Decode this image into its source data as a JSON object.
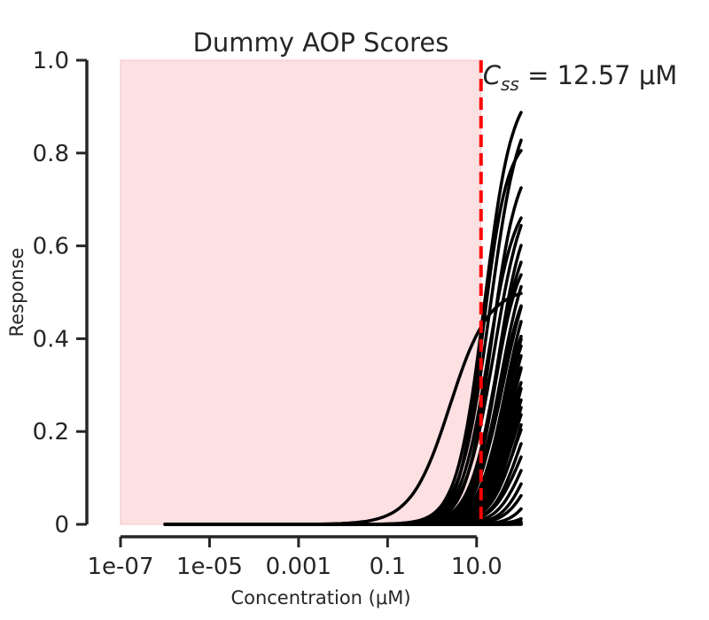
{
  "chart_data": {
    "type": "line",
    "title": "Dummy AOP Scores",
    "xlabel": "Concentration (μM)",
    "ylabel": "Response",
    "x_scale": "log",
    "xlim": [
      1e-07,
      100
    ],
    "ylim": [
      0,
      1
    ],
    "x_ticks": [
      1e-07,
      1e-05,
      0.001,
      0.1,
      10
    ],
    "x_tick_labels": [
      "1e-07",
      "1e-05",
      "0.001",
      "0.1",
      "10.0"
    ],
    "y_ticks": [
      0,
      0.2,
      0.4,
      0.6,
      0.8,
      1.0
    ],
    "y_tick_labels": [
      "0",
      "0.2",
      "0.4",
      "0.6",
      "0.8",
      "1.0"
    ],
    "grid": false,
    "shaded_region": {
      "x_from": 1e-07,
      "x_to": 12.57,
      "color": "#fde0e2"
    },
    "reference_line": {
      "x": 12.57,
      "color": "#ff0000",
      "style": "dashed"
    },
    "annotation": {
      "lhs": "C",
      "subscript": "ss",
      "rhs": " =  12.57 μM"
    },
    "curve_color": "#000000",
    "curve_x_range": [
      1e-06,
      100
    ],
    "series": [
      {
        "ec50": 2.5,
        "hill": 1.0,
        "top": 0.51
      },
      {
        "ec50": 15,
        "hill": 1.4,
        "top": 0.95
      },
      {
        "ec50": 20,
        "hill": 1.3,
        "top": 0.93
      },
      {
        "ec50": 14,
        "hill": 1.6,
        "top": 0.84
      },
      {
        "ec50": 22,
        "hill": 1.5,
        "top": 0.8
      },
      {
        "ec50": 25,
        "hill": 1.3,
        "top": 0.75
      },
      {
        "ec50": 18,
        "hill": 1.4,
        "top": 0.72
      },
      {
        "ec50": 30,
        "hill": 1.5,
        "top": 0.7
      },
      {
        "ec50": 28,
        "hill": 1.4,
        "top": 0.66
      },
      {
        "ec50": 35,
        "hill": 1.4,
        "top": 0.63
      },
      {
        "ec50": 40,
        "hill": 1.3,
        "top": 0.61
      },
      {
        "ec50": 26,
        "hill": 1.6,
        "top": 0.6
      },
      {
        "ec50": 45,
        "hill": 1.4,
        "top": 0.58
      },
      {
        "ec50": 33,
        "hill": 1.5,
        "top": 0.56
      },
      {
        "ec50": 50,
        "hill": 1.4,
        "top": 0.55
      },
      {
        "ec50": 55,
        "hill": 1.3,
        "top": 0.53
      },
      {
        "ec50": 38,
        "hill": 1.5,
        "top": 0.5
      },
      {
        "ec50": 60,
        "hill": 1.4,
        "top": 0.5
      },
      {
        "ec50": 42,
        "hill": 1.6,
        "top": 0.48
      },
      {
        "ec50": 70,
        "hill": 1.4,
        "top": 0.47
      },
      {
        "ec50": 48,
        "hill": 1.5,
        "top": 0.45
      },
      {
        "ec50": 80,
        "hill": 1.3,
        "top": 0.44
      },
      {
        "ec50": 52,
        "hill": 1.5,
        "top": 0.42
      },
      {
        "ec50": 90,
        "hill": 1.4,
        "top": 0.4
      },
      {
        "ec50": 58,
        "hill": 1.6,
        "top": 0.38
      },
      {
        "ec50": 65,
        "hill": 1.5,
        "top": 0.36
      },
      {
        "ec50": 75,
        "hill": 1.4,
        "top": 0.34
      },
      {
        "ec50": 85,
        "hill": 1.5,
        "top": 0.31
      },
      {
        "ec50": 95,
        "hill": 1.4,
        "top": 0.28
      },
      {
        "ec50": 110,
        "hill": 1.5,
        "top": 0.25
      },
      {
        "ec50": 130,
        "hill": 1.6,
        "top": 0.22
      },
      {
        "ec50": 150,
        "hill": 1.6,
        "top": 0.18
      },
      {
        "ec50": 200,
        "hill": 1.8,
        "top": 0.15
      },
      {
        "ec50": 300,
        "hill": 1.8,
        "top": 0.1
      },
      {
        "ec50": 400,
        "hill": 1.8,
        "top": 0.08
      },
      {
        "ec50": 500,
        "hill": 1.8,
        "top": 0.06
      },
      {
        "ec50": 700,
        "hill": 1.8,
        "top": 0.04
      },
      {
        "ec50": 900,
        "hill": 1.8,
        "top": 0.03
      },
      {
        "ec50": 1200,
        "hill": 1.8,
        "top": 0.02
      },
      {
        "ec50": 1500,
        "hill": 1.8,
        "top": 0.01
      }
    ]
  }
}
